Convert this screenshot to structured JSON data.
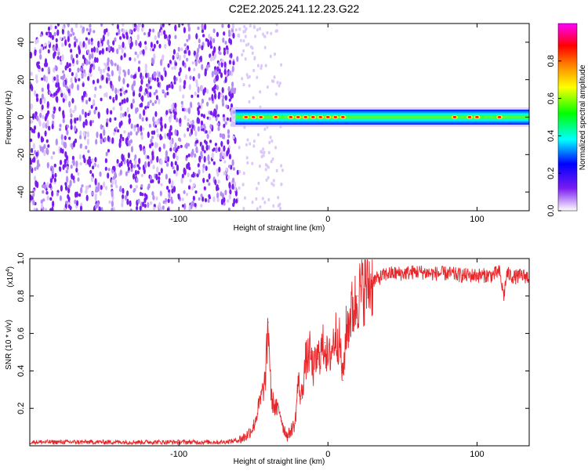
{
  "title": "C2E2.2025.241.12.23.G22",
  "colors": {
    "snr_line": "#e8262a",
    "scatter_dot": "#7a1cf0",
    "scatter_light": "#b58cf5",
    "scatter_faint": "#ddc8fa"
  },
  "chart_data": [
    {
      "type": "heatmap",
      "title": "C2E2.2025.241.12.23.G22",
      "xlabel": "Height of straight line (km)",
      "ylabel": "Frequency (Hz)",
      "xlim": [
        -200,
        135
      ],
      "ylim": [
        -50,
        50
      ],
      "xticks": [
        -100,
        0,
        100
      ],
      "xtick_labels": [
        "-100",
        "0",
        "100"
      ],
      "yticks": [
        -40,
        -20,
        0,
        20,
        40
      ],
      "ytick_labels": [
        "-40",
        "-20",
        "0",
        "20",
        "40"
      ],
      "noise_region_x": [
        -200,
        -60
      ],
      "signal_band": {
        "x_start": -62,
        "x_end": 135,
        "center_hz": 0,
        "half_width_hz": 4
      },
      "peaks_x": [
        -55,
        -50,
        -45,
        -35,
        -25,
        -20,
        -15,
        -10,
        -5,
        0,
        5,
        10,
        85,
        95,
        100,
        115
      ],
      "colorbar": {
        "label": "Normalized spectral amplitude",
        "range": [
          0,
          1
        ],
        "ticks": [
          0,
          0.2,
          0.4,
          0.6,
          0.8
        ],
        "tick_labels": [
          "0.0",
          "0.2",
          "0.4",
          "0.6",
          "0.8"
        ],
        "colors": [
          "#ffffff",
          "#7a1cf0",
          "#0000ff",
          "#00ffff",
          "#00ff00",
          "#ffff00",
          "#ff8000",
          "#ff0000",
          "#ff00ff"
        ]
      }
    },
    {
      "type": "line",
      "xlabel": "Height of straight line (km)",
      "ylabel": "SNR (10 * v/v)",
      "scale_label": "(x10",
      "scale_exp": "4",
      "scale_close": ")",
      "xlim": [
        -200,
        135
      ],
      "ylim": [
        0,
        1.0
      ],
      "xticks": [
        -100,
        0,
        100
      ],
      "xtick_labels": [
        "-100",
        "0",
        "100"
      ],
      "yticks": [
        0.2,
        0.4,
        0.6,
        0.8,
        1.0
      ],
      "ytick_labels": [
        "0.2",
        "0.4",
        "0.6",
        "0.8",
        "1.0"
      ],
      "series": [
        {
          "name": "SNR",
          "x": [
            -200,
            -180,
            -160,
            -140,
            -120,
            -100,
            -80,
            -70,
            -60,
            -55,
            -50,
            -45,
            -42,
            -40,
            -38,
            -35,
            -32,
            -30,
            -27,
            -25,
            -22,
            -20,
            -18,
            -15,
            -12,
            -10,
            -8,
            -5,
            -2,
            0,
            2,
            5,
            8,
            10,
            12,
            15,
            18,
            20,
            25,
            30,
            35,
            40,
            50,
            60,
            70,
            80,
            90,
            100,
            110,
            115,
            118,
            120,
            125,
            130,
            135
          ],
          "values": [
            0.02,
            0.02,
            0.02,
            0.02,
            0.02,
            0.02,
            0.02,
            0.02,
            0.03,
            0.05,
            0.1,
            0.25,
            0.35,
            0.66,
            0.25,
            0.2,
            0.18,
            0.1,
            0.05,
            0.08,
            0.12,
            0.35,
            0.25,
            0.45,
            0.5,
            0.4,
            0.45,
            0.5,
            0.55,
            0.45,
            0.5,
            0.6,
            0.55,
            0.35,
            0.6,
            0.7,
            0.75,
            0.8,
            0.85,
            0.88,
            0.9,
            0.92,
            0.92,
            0.93,
            0.92,
            0.92,
            0.91,
            0.91,
            0.91,
            0.93,
            0.8,
            0.92,
            0.9,
            0.91,
            0.9
          ]
        }
      ]
    }
  ]
}
